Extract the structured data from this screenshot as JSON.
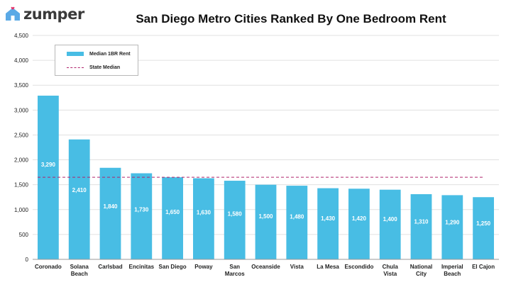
{
  "brand": {
    "name": "zumper",
    "colors": {
      "logo_icon": "#5aa9e6",
      "logo_heart": "#e8356b"
    }
  },
  "chart_data": {
    "type": "bar",
    "title": "San Diego Metro Cities Ranked By One Bedroom Rent",
    "categories": [
      [
        "Coronado"
      ],
      [
        "Solana",
        "Beach"
      ],
      [
        "Carlsbad"
      ],
      [
        "Encinitas"
      ],
      [
        "San Diego"
      ],
      [
        "Poway"
      ],
      [
        "San",
        "Marcos"
      ],
      [
        "Oceanside"
      ],
      [
        "Vista"
      ],
      [
        "La Mesa"
      ],
      [
        "Escondido"
      ],
      [
        "Chula",
        "Vista"
      ],
      [
        "National",
        "City"
      ],
      [
        "Imperial",
        "Beach"
      ],
      [
        "El Cajon"
      ]
    ],
    "series": [
      {
        "name": "Median 1BR Rent",
        "type": "bar",
        "color": "#48bde4",
        "values": [
          3290,
          2410,
          1840,
          1730,
          1650,
          1630,
          1580,
          1500,
          1480,
          1430,
          1420,
          1400,
          1310,
          1290,
          1250
        ],
        "data_labels": [
          "3,290",
          "2,410",
          "1,840",
          "1,730",
          "1,650",
          "1,630",
          "1,580",
          "1,500",
          "1,480",
          "1,430",
          "1,420",
          "1,400",
          "1,310",
          "1,290",
          "1,250"
        ]
      },
      {
        "name": "State Median",
        "type": "line",
        "style": "dashed",
        "color": "#b0246c",
        "value": 1650
      }
    ],
    "ylim": [
      0,
      4500
    ],
    "yticks": [
      0,
      500,
      1000,
      1500,
      2000,
      2500,
      3000,
      3500,
      4000,
      4500
    ],
    "ytick_labels": [
      "0",
      "500",
      "1,000",
      "1,500",
      "2,000",
      "2,500",
      "3,000",
      "3,500",
      "4,000",
      "4,500"
    ],
    "grid": true,
    "legend_position": "top-left"
  }
}
